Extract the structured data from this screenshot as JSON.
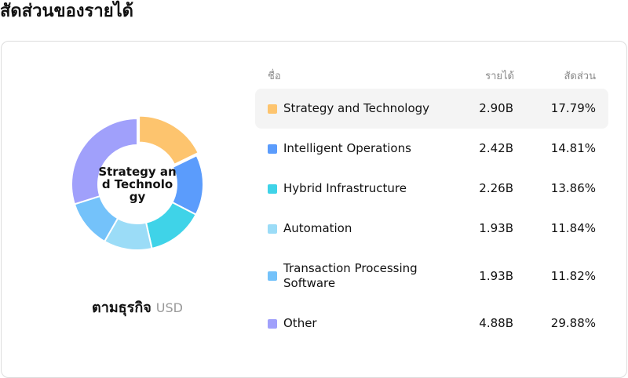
{
  "title": "สัดส่วนของรายได้",
  "chart_data": {
    "type": "donut",
    "center_label": "Strategy and Technology",
    "caption": "ตามธุรกิจ",
    "unit": "USD",
    "columns": [
      "ชื่อ",
      "รายได้",
      "สัดส่วน"
    ],
    "categories": [
      "Strategy and Technology",
      "Intelligent Operations",
      "Hybrid Infrastructure",
      "Automation",
      "Transaction Processing Software",
      "Other"
    ],
    "values": [
      17.79,
      14.81,
      13.86,
      11.84,
      11.82,
      29.88
    ],
    "value_labels": [
      "17.79%",
      "14.81%",
      "13.86%",
      "11.84%",
      "11.82%",
      "29.88%"
    ],
    "revenue": [
      "2.90B",
      "2.42B",
      "2.26B",
      "1.93B",
      "1.93B",
      "4.88B"
    ],
    "colors": [
      "#fdc46e",
      "#5b9cfc",
      "#3fd3e8",
      "#9bdcf7",
      "#74c2fa",
      "#a0a0fb"
    ],
    "highlight": 0
  }
}
